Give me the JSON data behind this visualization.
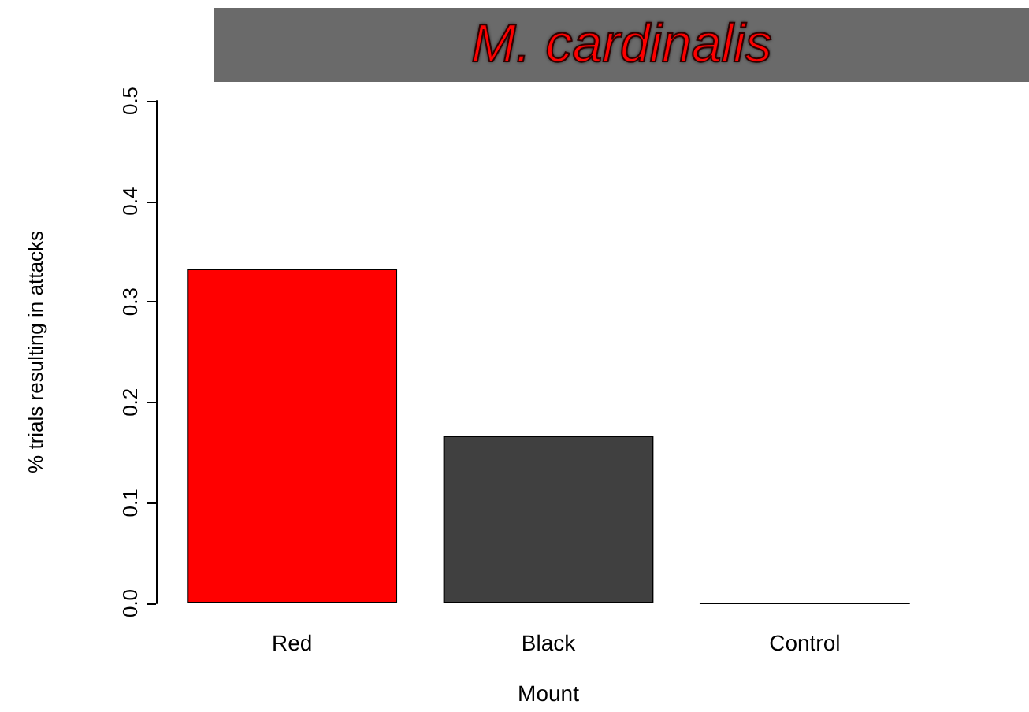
{
  "chart_data": {
    "type": "bar",
    "title": "M. cardinalis",
    "xlabel": "Mount",
    "ylabel": "% trials resulting in attacks",
    "categories": [
      "Red",
      "Black",
      "Control"
    ],
    "values": [
      0.333,
      0.167,
      0
    ],
    "colors": [
      "#ff0000",
      "#404040",
      "#ffffff"
    ],
    "ylim": [
      0,
      0.5
    ],
    "yticks": [
      {
        "value": 0,
        "label": "0.0"
      },
      0.1,
      0.2,
      0.3,
      0.4,
      0.5
    ],
    "grid": false
  }
}
